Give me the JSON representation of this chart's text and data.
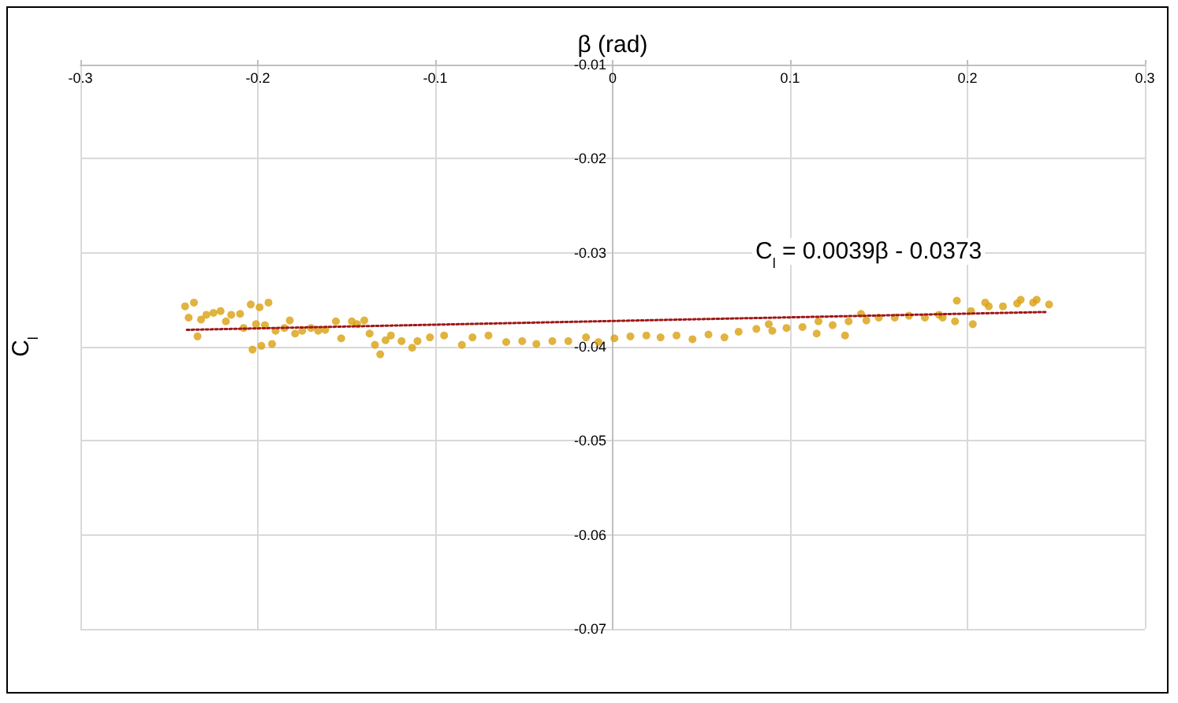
{
  "chart_data": {
    "type": "scatter",
    "xlabel": "β (rad)",
    "ylabel": "C$_{l}$",
    "annotations": [
      "C$_{l}$ = 0.0039β - 0.0373"
    ],
    "xlim": [
      -0.3,
      0.3
    ],
    "xticks": [
      -0.3,
      -0.2,
      -0.1,
      0,
      0.1,
      0.2,
      0.3
    ],
    "ylim": [
      -0.07,
      -0.01
    ],
    "yticks": [
      -0.07,
      -0.06,
      -0.05,
      -0.04,
      -0.03,
      -0.02,
      -0.01
    ],
    "grid": true,
    "marker": "circle",
    "series": [
      {
        "type": "scatter",
        "color": "#daa00f",
        "x": [
          -0.241,
          -0.239,
          -0.236,
          -0.234,
          -0.232,
          -0.229,
          -0.225,
          -0.221,
          -0.218,
          -0.215,
          -0.21,
          -0.208,
          -0.204,
          -0.203,
          -0.201,
          -0.199,
          -0.198,
          -0.196,
          -0.194,
          -0.192,
          -0.19,
          -0.185,
          -0.182,
          -0.179,
          -0.175,
          -0.17,
          -0.166,
          -0.162,
          -0.156,
          -0.153,
          -0.147,
          -0.144,
          -0.14,
          -0.137,
          -0.134,
          -0.131,
          -0.128,
          -0.125,
          -0.119,
          -0.113,
          -0.11,
          -0.103,
          -0.095,
          -0.085,
          -0.079,
          -0.07,
          -0.06,
          -0.051,
          -0.043,
          -0.034,
          -0.025,
          -0.015,
          -0.008,
          0.001,
          0.01,
          0.019,
          0.027,
          0.036,
          0.045,
          0.054,
          0.063,
          0.071,
          0.081,
          0.088,
          0.09,
          0.098,
          0.107,
          0.115,
          0.116,
          0.124,
          0.131,
          0.133,
          0.14,
          0.143,
          0.15,
          0.159,
          0.167,
          0.176,
          0.184,
          0.186,
          0.193,
          0.194,
          0.202,
          0.203,
          0.21,
          0.212,
          0.22,
          0.228,
          0.23,
          0.237,
          0.239,
          0.246
        ],
        "values": [
          -0.0357,
          -0.0369,
          -0.0353,
          -0.0389,
          -0.0371,
          -0.0366,
          -0.0364,
          -0.0362,
          -0.0373,
          -0.0366,
          -0.0365,
          -0.038,
          -0.0355,
          -0.0403,
          -0.0376,
          -0.0358,
          -0.0399,
          -0.0377,
          -0.0353,
          -0.0397,
          -0.0383,
          -0.038,
          -0.0372,
          -0.0386,
          -0.0383,
          -0.038,
          -0.0383,
          -0.0382,
          -0.0373,
          -0.0391,
          -0.0373,
          -0.0376,
          -0.0372,
          -0.0386,
          -0.0398,
          -0.0408,
          -0.0393,
          -0.0388,
          -0.0394,
          -0.0401,
          -0.0394,
          -0.039,
          -0.0388,
          -0.0398,
          -0.039,
          -0.0388,
          -0.0395,
          -0.0394,
          -0.0397,
          -0.0394,
          -0.0394,
          -0.039,
          -0.0395,
          -0.0391,
          -0.0389,
          -0.0388,
          -0.039,
          -0.0388,
          -0.0392,
          -0.0387,
          -0.039,
          -0.0384,
          -0.0381,
          -0.0376,
          -0.0383,
          -0.038,
          -0.0379,
          -0.0386,
          -0.0373,
          -0.0377,
          -0.0388,
          -0.0373,
          -0.0365,
          -0.0372,
          -0.0369,
          -0.0369,
          -0.0367,
          -0.0369,
          -0.0366,
          -0.0369,
          -0.0373,
          -0.0351,
          -0.0362,
          -0.0376,
          -0.0353,
          -0.0357,
          -0.0357,
          -0.0354,
          -0.035,
          -0.0353,
          -0.035,
          -0.0355
        ]
      },
      {
        "type": "line",
        "color": "#a01818",
        "line_style": "dotted",
        "marker": "none",
        "x": [
          -0.24,
          0.245
        ],
        "values": [
          -0.0382,
          -0.0363
        ]
      }
    ]
  }
}
